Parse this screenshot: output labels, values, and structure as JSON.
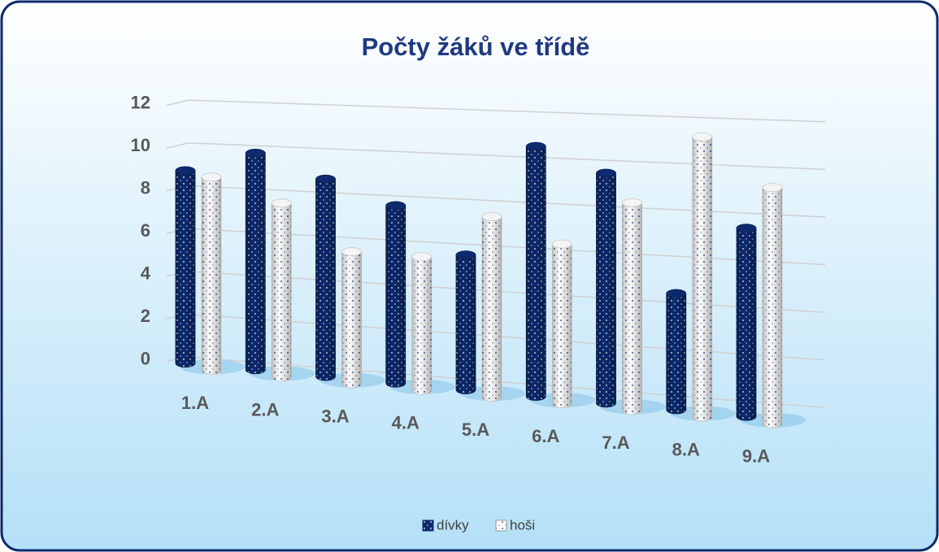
{
  "chart_data": {
    "type": "bar3d",
    "title": "Počty žáků ve třídě",
    "categories": [
      "1.A",
      "2.A",
      "3.A",
      "4.A",
      "5.A",
      "6.A",
      "7.A",
      "8.A",
      "9.A"
    ],
    "series": [
      {
        "name": "dívky",
        "color": "#0d2a6e",
        "values": [
          9,
          10,
          9,
          8,
          6,
          11,
          10,
          5,
          8
        ]
      },
      {
        "name": "hoši",
        "color": "#ffffff",
        "values": [
          9,
          8,
          6,
          6,
          8,
          7,
          9,
          12,
          10
        ]
      }
    ],
    "ylim": [
      0,
      12
    ],
    "yticks": [
      0,
      2,
      4,
      6,
      8,
      10,
      12
    ],
    "grid": true,
    "legend": "bottom"
  }
}
